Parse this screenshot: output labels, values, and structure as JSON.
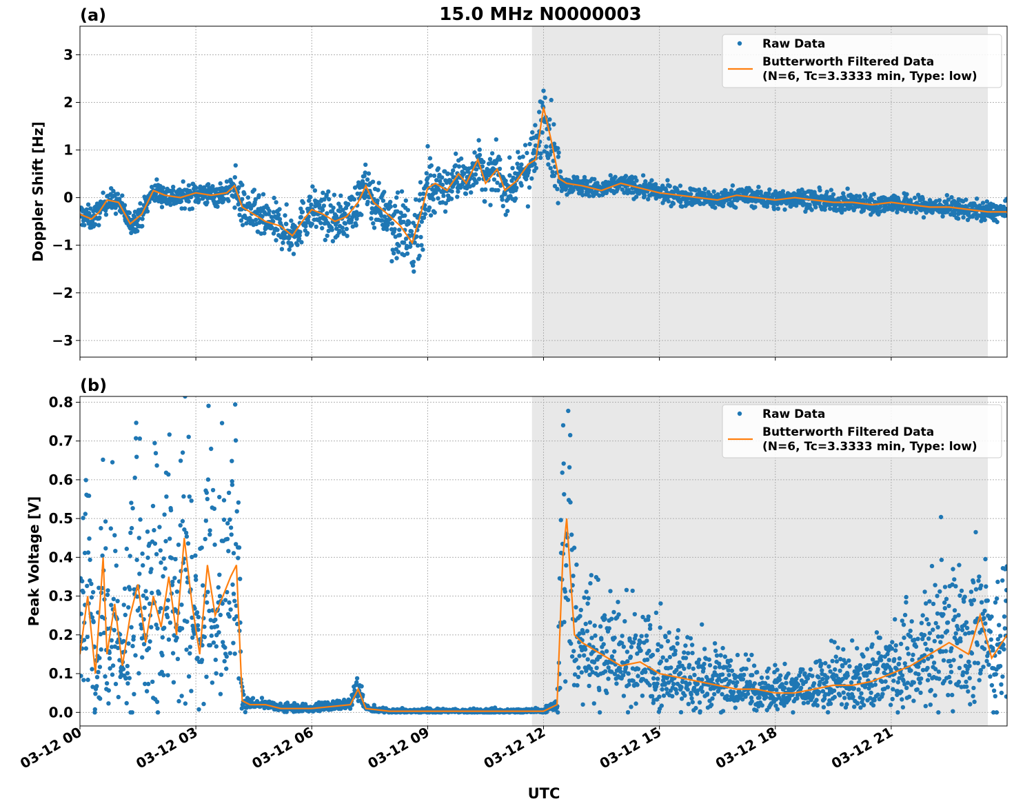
{
  "figure": {
    "title": "15.0 MHz N0000003",
    "xlabel": "UTC",
    "x_tick_labels": [
      "03-12 00",
      "03-12 03",
      "03-12 06",
      "03-12 09",
      "03-12 12",
      "03-12 15",
      "03-12 18",
      "03-12 21"
    ]
  },
  "colors": {
    "raw": "#1f77b4",
    "filtered": "#ff7f0e",
    "shade": "#e8e8e8",
    "grid": "#b0b0b0"
  },
  "chart_data": [
    {
      "type": "scatter",
      "panel_label": "(a)",
      "ylabel": "Doppler Shift [Hz]",
      "xlim_hours": [
        0,
        24
      ],
      "ylim": [
        -3.35,
        3.6
      ],
      "y_ticks": [
        -3,
        -2,
        -1,
        0,
        1,
        2,
        3
      ],
      "y_tick_labels": [
        "−3",
        "−2",
        "−1",
        "0",
        "1",
        "2",
        "3"
      ],
      "shaded_region_hours": [
        11.7,
        23.5
      ],
      "legend": {
        "placement": "top-right",
        "raw_label": "Raw Data",
        "filtered_label_1": "Butterworth Filtered Data",
        "filtered_label_2": "(N=6, Tc=3.3333 min, Type: low)"
      },
      "series": [
        {
          "name": "Butterworth Filtered Data",
          "kind": "line",
          "x": [
            0,
            0.3,
            0.5,
            0.7,
            1.0,
            1.3,
            1.6,
            1.9,
            2.2,
            2.6,
            3.0,
            3.4,
            3.8,
            4.0,
            4.2,
            4.5,
            4.8,
            5.2,
            5.5,
            5.8,
            6.0,
            6.3,
            6.6,
            6.9,
            7.2,
            7.4,
            7.6,
            7.9,
            8.1,
            8.3,
            8.6,
            8.8,
            9.0,
            9.2,
            9.5,
            9.8,
            10.0,
            10.3,
            10.5,
            10.8,
            11.0,
            11.3,
            11.6,
            11.8,
            12.0,
            12.2,
            12.4,
            12.6,
            13.0,
            13.5,
            14.0,
            14.5,
            15.0,
            15.5,
            16.0,
            16.5,
            17.0,
            17.5,
            18.0,
            18.5,
            19.0,
            19.5,
            20.0,
            20.5,
            21.0,
            21.5,
            22.0,
            22.5,
            23.0,
            23.5,
            24.0
          ],
          "y": [
            -0.35,
            -0.45,
            -0.3,
            -0.05,
            -0.1,
            -0.55,
            -0.35,
            0.15,
            0.05,
            0.0,
            0.1,
            0.05,
            0.1,
            0.25,
            -0.2,
            -0.35,
            -0.5,
            -0.6,
            -0.8,
            -0.45,
            -0.25,
            -0.35,
            -0.5,
            -0.4,
            -0.1,
            0.25,
            -0.1,
            -0.3,
            -0.45,
            -0.6,
            -0.95,
            -0.4,
            0.2,
            0.3,
            0.15,
            0.5,
            0.3,
            0.8,
            0.3,
            0.6,
            0.15,
            0.35,
            0.7,
            0.8,
            1.9,
            1.2,
            0.4,
            0.3,
            0.25,
            0.15,
            0.3,
            0.2,
            0.1,
            0.05,
            0.0,
            -0.05,
            0.05,
            0.0,
            -0.05,
            0.0,
            -0.05,
            -0.1,
            -0.1,
            -0.15,
            -0.1,
            -0.15,
            -0.2,
            -0.2,
            -0.25,
            -0.3,
            -0.3
          ]
        },
        {
          "name": "Raw Data",
          "kind": "points",
          "x": [],
          "y": []
        }
      ]
    },
    {
      "type": "scatter",
      "panel_label": "(b)",
      "ylabel": "Peak Voltage [V]",
      "xlim_hours": [
        0,
        24
      ],
      "ylim": [
        -0.035,
        0.815
      ],
      "y_ticks": [
        0.0,
        0.1,
        0.2,
        0.3,
        0.4,
        0.5,
        0.6,
        0.7,
        0.8
      ],
      "y_tick_labels": [
        "0.0",
        "0.1",
        "0.2",
        "0.3",
        "0.4",
        "0.5",
        "0.6",
        "0.7",
        "0.8"
      ],
      "shaded_region_hours": [
        11.7,
        23.5
      ],
      "legend": {
        "placement": "top-right",
        "raw_label": "Raw Data",
        "filtered_label_1": "Butterworth Filtered Data",
        "filtered_label_2": "(N=6, Tc=3.3333 min, Type: low)"
      },
      "series": [
        {
          "name": "Butterworth Filtered Data",
          "kind": "line",
          "x": [
            0,
            0.2,
            0.4,
            0.6,
            0.7,
            0.9,
            1.1,
            1.3,
            1.5,
            1.7,
            1.9,
            2.1,
            2.3,
            2.5,
            2.7,
            2.9,
            3.1,
            3.3,
            3.5,
            3.7,
            3.9,
            4.05,
            4.2,
            4.4,
            4.8,
            5.2,
            6.0,
            7.0,
            7.2,
            7.4,
            8.0,
            9.0,
            10.0,
            11.0,
            12.0,
            12.35,
            12.5,
            12.6,
            12.8,
            13.0,
            13.5,
            14.0,
            14.5,
            15.0,
            15.5,
            16.0,
            16.5,
            17.0,
            17.5,
            18.0,
            18.5,
            19.0,
            19.5,
            20.0,
            20.5,
            21.0,
            21.5,
            22.0,
            22.5,
            23.0,
            23.3,
            23.6,
            24.0
          ],
          "y": [
            0.15,
            0.3,
            0.1,
            0.4,
            0.15,
            0.28,
            0.12,
            0.25,
            0.33,
            0.18,
            0.3,
            0.22,
            0.35,
            0.2,
            0.45,
            0.28,
            0.15,
            0.38,
            0.25,
            0.3,
            0.35,
            0.38,
            0.03,
            0.02,
            0.02,
            0.01,
            0.01,
            0.02,
            0.06,
            0.01,
            0.003,
            0.003,
            0.003,
            0.003,
            0.003,
            0.02,
            0.4,
            0.5,
            0.2,
            0.18,
            0.15,
            0.12,
            0.13,
            0.1,
            0.09,
            0.08,
            0.07,
            0.06,
            0.06,
            0.05,
            0.05,
            0.06,
            0.07,
            0.07,
            0.08,
            0.1,
            0.12,
            0.15,
            0.18,
            0.15,
            0.25,
            0.14,
            0.2
          ]
        },
        {
          "name": "Raw Data",
          "kind": "points",
          "x": [],
          "y": []
        }
      ]
    }
  ]
}
